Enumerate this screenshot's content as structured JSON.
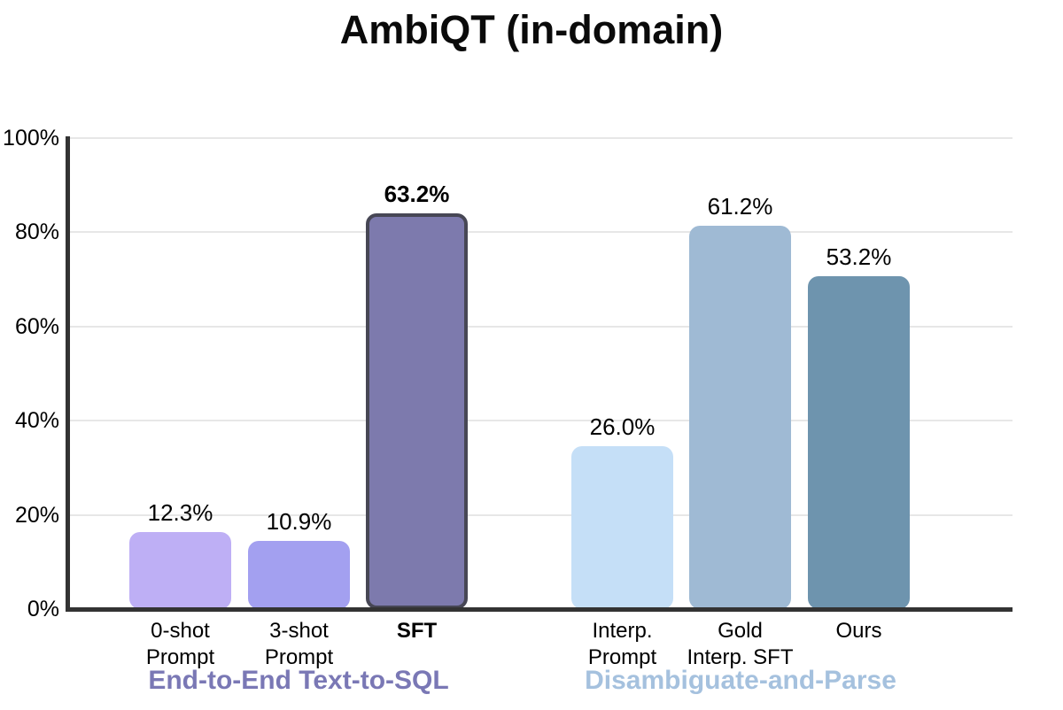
{
  "chart_data": {
    "type": "bar",
    "title": "AmbiQT (in-domain)",
    "xlabel": "",
    "ylabel": "",
    "ylim": [
      0,
      100
    ],
    "grid": true,
    "legend_position": "none",
    "yticks": [
      {
        "value": 0,
        "label": "0%"
      },
      {
        "value": 20,
        "label": "20%"
      },
      {
        "value": 40,
        "label": "40%"
      },
      {
        "value": 60,
        "label": "60%"
      },
      {
        "value": 80,
        "label": "80%"
      },
      {
        "value": 100,
        "label": "100%"
      }
    ],
    "groups": [
      {
        "label": "End-to-End Text-to-SQL",
        "label_color": "#7a78b5",
        "bars": [
          {
            "category": "0-shot\nPrompt",
            "value": 12.3,
            "value_label": "12.3%",
            "color": "#beaff5",
            "emphasis": false
          },
          {
            "category": "3-shot\nPrompt",
            "value": 10.9,
            "value_label": "10.9%",
            "color": "#a3a0f0",
            "emphasis": false
          },
          {
            "category": "SFT",
            "value": 63.2,
            "value_label": "63.2%",
            "color": "#7d7aad",
            "border_color": "#474755",
            "emphasis": true
          }
        ]
      },
      {
        "label": "Disambiguate-and-Parse",
        "label_color": "#a5c1de",
        "bars": [
          {
            "category": "Interp.\nPrompt",
            "value": 26.0,
            "value_label": "26.0%",
            "color": "#c5dff7",
            "emphasis": false
          },
          {
            "category": "Gold\nInterp. SFT",
            "value": 61.2,
            "value_label": "61.2%",
            "color": "#9fbad4",
            "emphasis": false
          },
          {
            "category": "Ours",
            "value": 53.2,
            "value_label": "53.2%",
            "color": "#6e94ae",
            "emphasis": false
          }
        ]
      }
    ],
    "axis_color": "#333333",
    "gridline_color": "#e7e7e7",
    "text_color": "#000000"
  }
}
